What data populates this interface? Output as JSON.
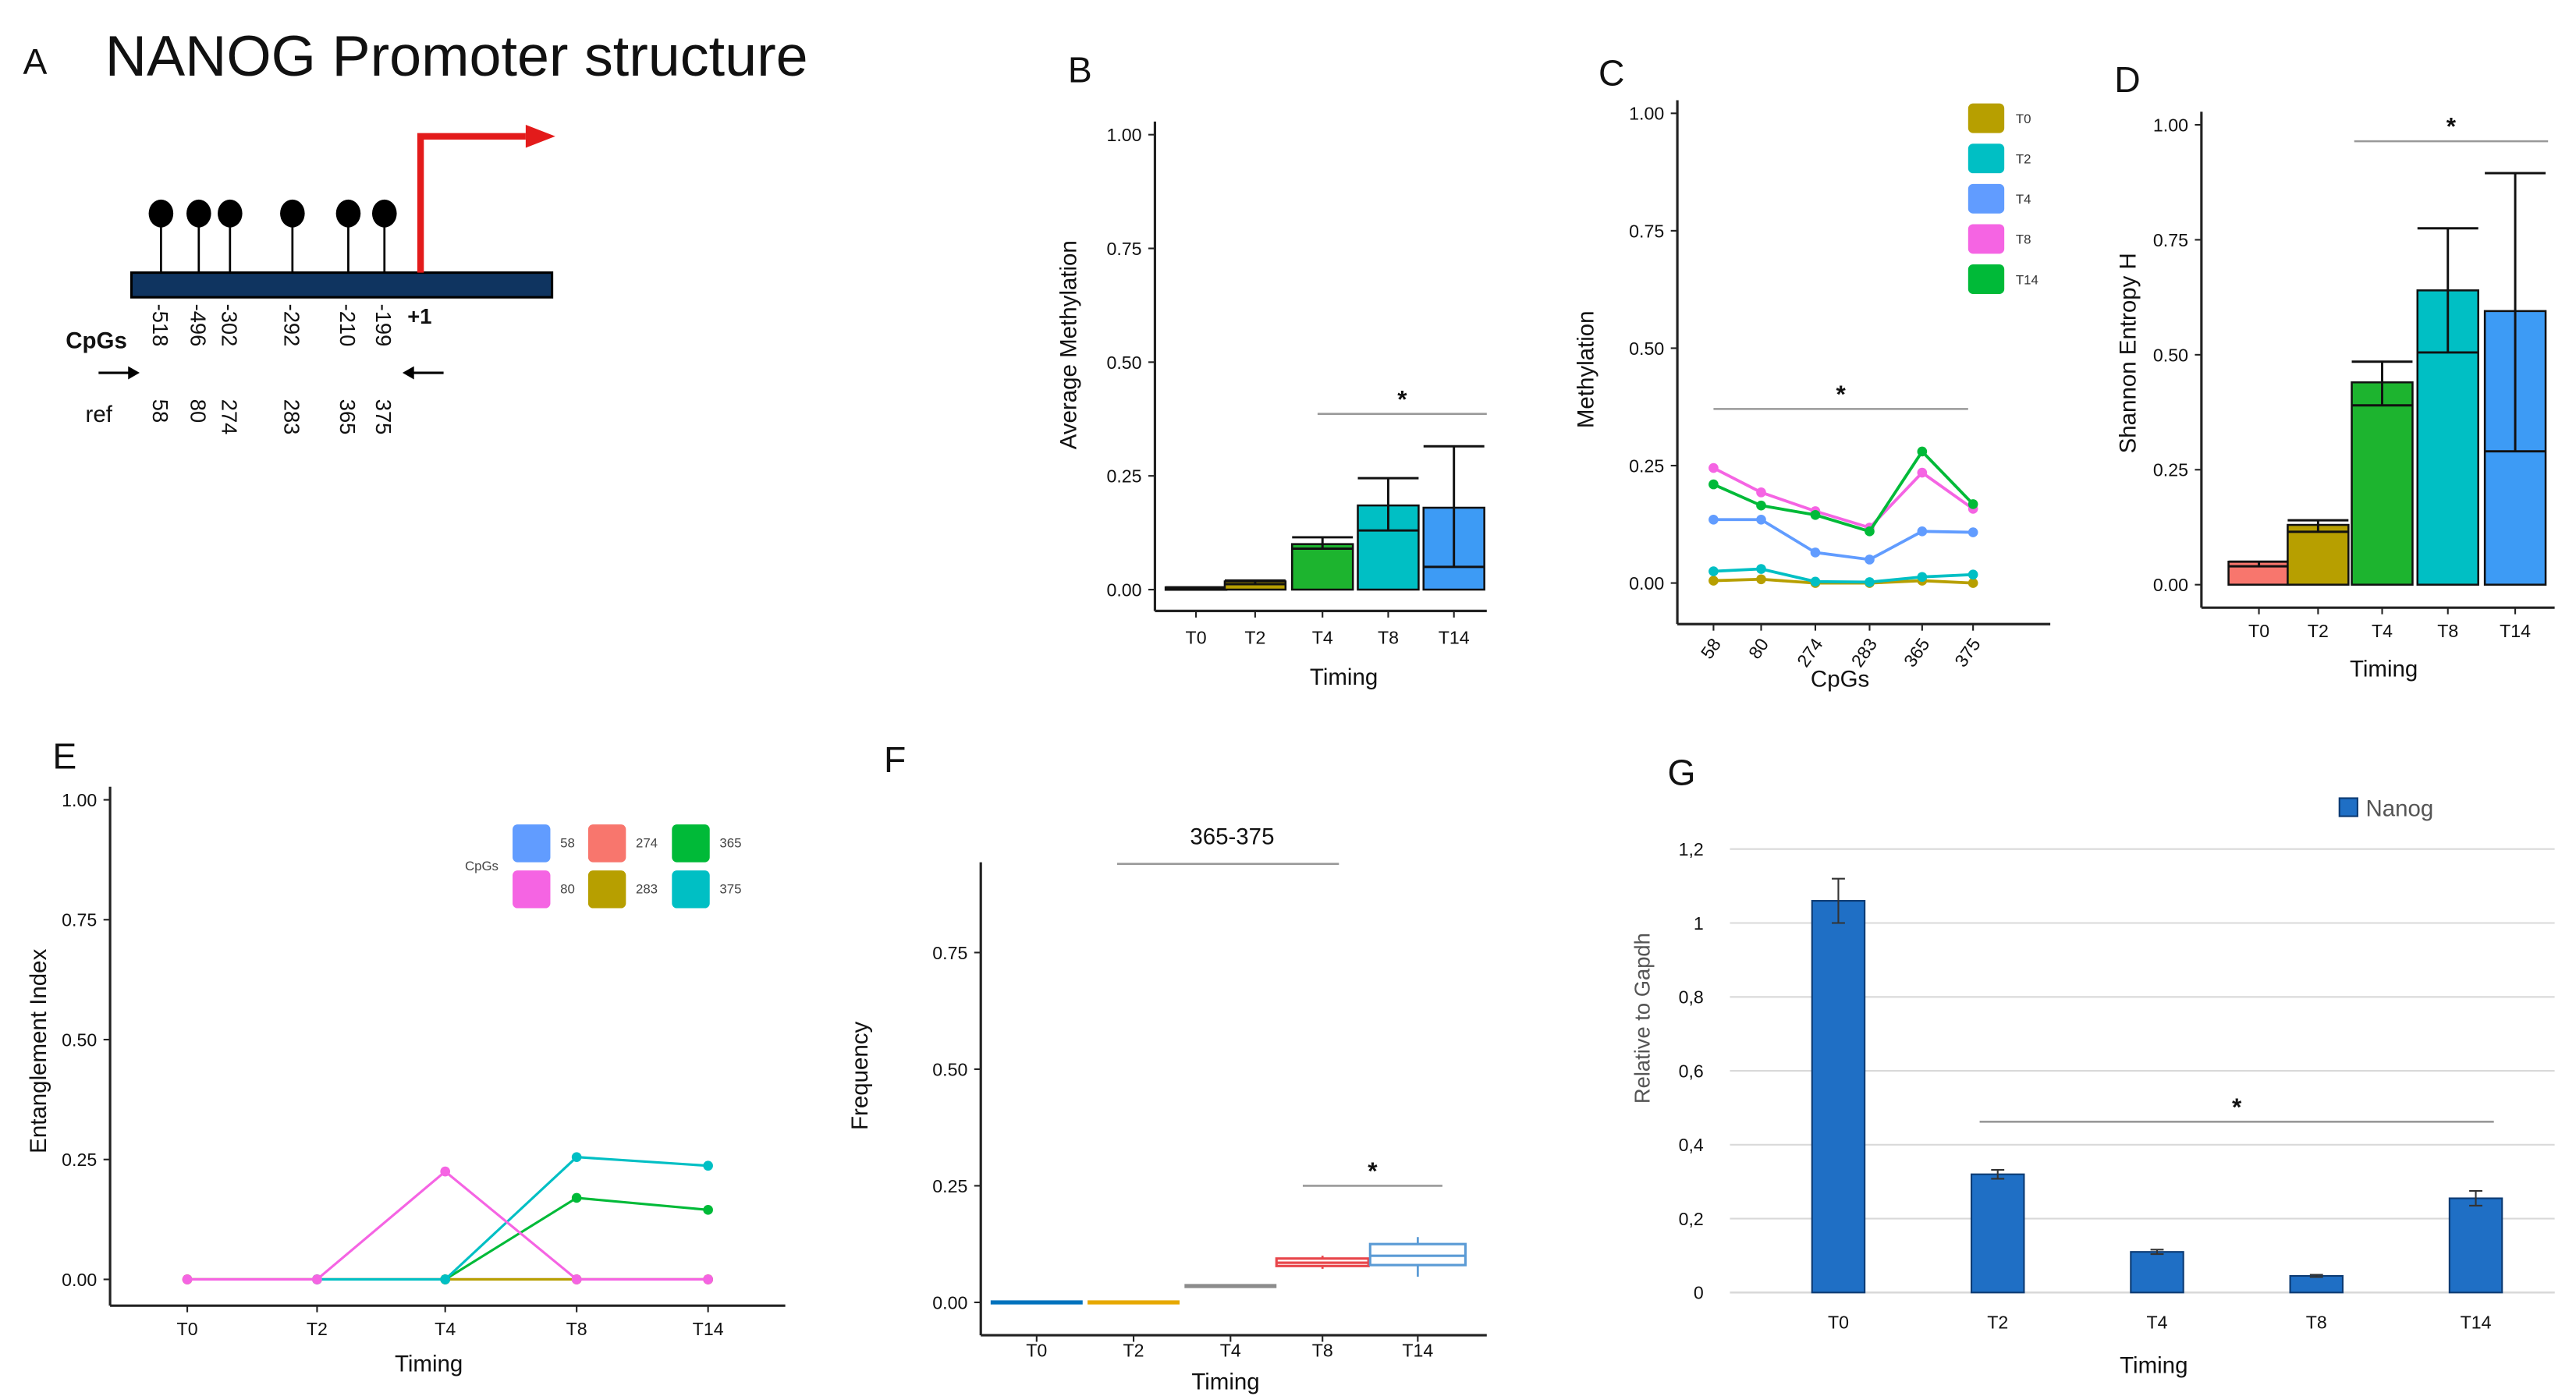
{
  "panel_a": {
    "label": "A",
    "title": "NANOG Promoter structure",
    "cpgs_label": "CpGs",
    "ref_label": "ref",
    "tss_label": "+1",
    "cpg_positions": [
      "-518",
      "-496",
      "-302",
      "-292",
      "-210",
      "-199"
    ],
    "ref_numbers": [
      "58",
      "80",
      "274",
      "283",
      "365",
      "375"
    ],
    "colors": {
      "promoter": "#0F3460",
      "tss_arrow": "#E31B1B"
    }
  },
  "chart_data": [
    {
      "id": "B",
      "label": "B",
      "type": "bar",
      "categories": [
        "T0",
        "T2",
        "T4",
        "T8",
        "T14"
      ],
      "values": [
        0.005,
        0.018,
        0.1,
        0.185,
        0.18
      ],
      "inner_line": [
        0.004,
        0.012,
        0.09,
        0.13,
        0.05
      ],
      "error_upper": [
        0.005,
        0.02,
        0.115,
        0.245,
        0.315
      ],
      "colors": [
        "#F8766D",
        "#B79F00",
        "#1DB42F",
        "#00BFC4",
        "#3D9BF5"
      ],
      "xlabel": "Timing",
      "ylabel": "Average Methylation",
      "ylim": [
        0,
        1
      ],
      "yticks": [
        "0.00",
        "0.25",
        "0.50",
        "0.75",
        "1.00"
      ],
      "significance": {
        "label": "*",
        "from": "T4",
        "to": "T14"
      }
    },
    {
      "id": "C",
      "label": "C",
      "type": "line",
      "categories": [
        "58",
        "80",
        "274",
        "283",
        "365",
        "375"
      ],
      "series": [
        {
          "name": "T0",
          "color": "#B79F00",
          "values": [
            0.005,
            0.008,
            0.0,
            0.0,
            0.005,
            0.0
          ]
        },
        {
          "name": "T2",
          "color": "#00BFC4",
          "values": [
            0.025,
            0.03,
            0.003,
            0.002,
            0.013,
            0.018
          ]
        },
        {
          "name": "T4",
          "color": "#619CFF",
          "values": [
            0.135,
            0.135,
            0.065,
            0.05,
            0.11,
            0.108
          ]
        },
        {
          "name": "T8",
          "color": "#F564E3",
          "values": [
            0.245,
            0.193,
            0.153,
            0.118,
            0.235,
            0.158
          ]
        },
        {
          "name": "T14",
          "color": "#00BA38",
          "values": [
            0.21,
            0.165,
            0.145,
            0.11,
            0.28,
            0.168
          ]
        }
      ],
      "xlabel": "CpGs",
      "ylabel": "Methylation",
      "ylim": [
        0,
        1
      ],
      "yticks": [
        "0.00",
        "0.25",
        "0.50",
        "0.75",
        "1.00"
      ],
      "legend": "top-right",
      "significance": {
        "label": "*",
        "from": "58",
        "to": "375"
      }
    },
    {
      "id": "D",
      "label": "D",
      "type": "bar",
      "categories": [
        "T0",
        "T2",
        "T4",
        "T8",
        "T14"
      ],
      "values": [
        0.05,
        0.13,
        0.44,
        0.64,
        0.595
      ],
      "inner_line": [
        0.04,
        0.115,
        0.39,
        0.505,
        0.29
      ],
      "error_upper": [
        0.05,
        0.14,
        0.485,
        0.775,
        0.895
      ],
      "colors": [
        "#F8766D",
        "#B79F00",
        "#1DB42F",
        "#00BFC4",
        "#3D9BF5"
      ],
      "xlabel": "Timing",
      "ylabel": "Shannon Entropy H",
      "ylim": [
        0,
        1
      ],
      "yticks": [
        "0.00",
        "0.25",
        "0.50",
        "0.75",
        "1.00"
      ],
      "significance": {
        "label": "*",
        "from": "T4",
        "to": "T14"
      }
    },
    {
      "id": "E",
      "label": "E",
      "type": "line",
      "categories": [
        "T0",
        "T2",
        "T4",
        "T8",
        "T14"
      ],
      "legend_title": "CpGs",
      "series": [
        {
          "name": "58",
          "color": "#619CFF",
          "values": [
            0,
            0,
            0,
            0,
            0
          ]
        },
        {
          "name": "274",
          "color": "#F8766D",
          "values": [
            0,
            0,
            0,
            0,
            0
          ]
        },
        {
          "name": "283",
          "color": "#B79F00",
          "values": [
            0,
            0,
            0,
            0,
            0
          ]
        },
        {
          "name": "365",
          "color": "#00BA38",
          "values": [
            null,
            null,
            0,
            0.17,
            0.145
          ]
        },
        {
          "name": "375",
          "color": "#00BFC4",
          "values": [
            null,
            0,
            0,
            0.255,
            0.237
          ]
        },
        {
          "name": "80",
          "color": "#F564E3",
          "values": [
            0,
            0,
            0.225,
            0,
            0
          ]
        }
      ],
      "legend_order": [
        "58",
        "274",
        "365",
        "80",
        "283",
        "375"
      ],
      "xlabel": "Timing",
      "ylabel": "Entanglement Index",
      "ylim": [
        0,
        1
      ],
      "yticks": [
        "0.00",
        "0.25",
        "0.50",
        "0.75",
        "1.00"
      ],
      "legend": "top-right"
    },
    {
      "id": "F",
      "label": "F",
      "type": "box",
      "title": "365-375",
      "categories": [
        "T0",
        "T2",
        "T4",
        "T8",
        "T14"
      ],
      "boxes": [
        {
          "min": 0,
          "q1": 0,
          "median": 0,
          "q3": 0,
          "max": 0,
          "color": "#0072BD"
        },
        {
          "min": 0,
          "q1": 0,
          "median": 0,
          "q3": 0,
          "max": 0,
          "color": "#E6A800"
        },
        {
          "min": 0.035,
          "q1": 0.035,
          "median": 0.035,
          "q3": 0.035,
          "max": 0.035,
          "color": "#8C8C8C"
        },
        {
          "min": 0.072,
          "q1": 0.078,
          "median": 0.085,
          "q3": 0.094,
          "max": 0.1,
          "color": "#E8474C"
        },
        {
          "min": 0.055,
          "q1": 0.08,
          "median": 0.1,
          "q3": 0.125,
          "max": 0.14,
          "color": "#5B9BD5"
        }
      ],
      "xlabel": "Timing",
      "ylabel": "Frequency",
      "ylim": [
        0,
        0.75
      ],
      "yticks": [
        "0.00",
        "0.25",
        "0.50",
        "0.75"
      ],
      "significance": [
        {
          "label": "",
          "from": "T2",
          "to": "T8"
        },
        {
          "label": "*",
          "from": "T8",
          "to": "T14"
        }
      ]
    },
    {
      "id": "G",
      "label": "G",
      "type": "bar",
      "categories": [
        "T0",
        "T2",
        "T4",
        "T8",
        "T14"
      ],
      "series": [
        {
          "name": "Nanog",
          "color": "#1F6FC5",
          "values": [
            1.06,
            0.32,
            0.11,
            0.045,
            0.255
          ]
        }
      ],
      "errors": [
        0.06,
        0.012,
        0.006,
        0.003,
        0.02
      ],
      "xlabel": "Timing",
      "ylabel": "Relative to Gapdh",
      "ylim": [
        0,
        1.2
      ],
      "yticks": [
        "0",
        "0,2",
        "0,4",
        "0,6",
        "0,8",
        "1",
        "1,2"
      ],
      "grid": true,
      "legend": "top-right",
      "significance": {
        "label": "*",
        "from": "T2",
        "to": "T14"
      }
    }
  ]
}
